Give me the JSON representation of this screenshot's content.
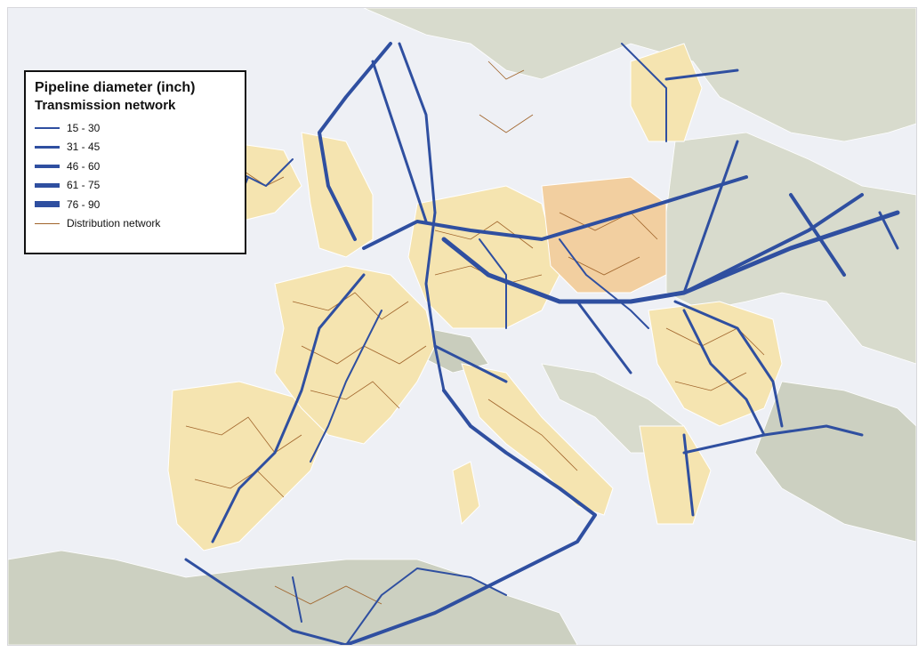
{
  "legend": {
    "title": "Pipeline diameter (inch)",
    "subtitle": "Transmission network",
    "items": [
      {
        "label": "15 - 30",
        "line_width": 1.5
      },
      {
        "label": "31 - 45",
        "line_width": 3
      },
      {
        "label": "46 - 60",
        "line_width": 4
      },
      {
        "label": "61 - 75",
        "line_width": 5.5
      },
      {
        "label": "76 - 90",
        "line_width": 7
      }
    ],
    "distribution_label": "Distribution network"
  },
  "colors": {
    "sea": "#eef0f5",
    "land_other": "#dcdfd3",
    "land_other_dark": "#c9cdbd",
    "land_network": "#f5e4b0",
    "land_network_core": "#f2cfa0",
    "transmission": "#2f4fa0",
    "distribution": "#a0642a",
    "border": "#ffffff"
  }
}
